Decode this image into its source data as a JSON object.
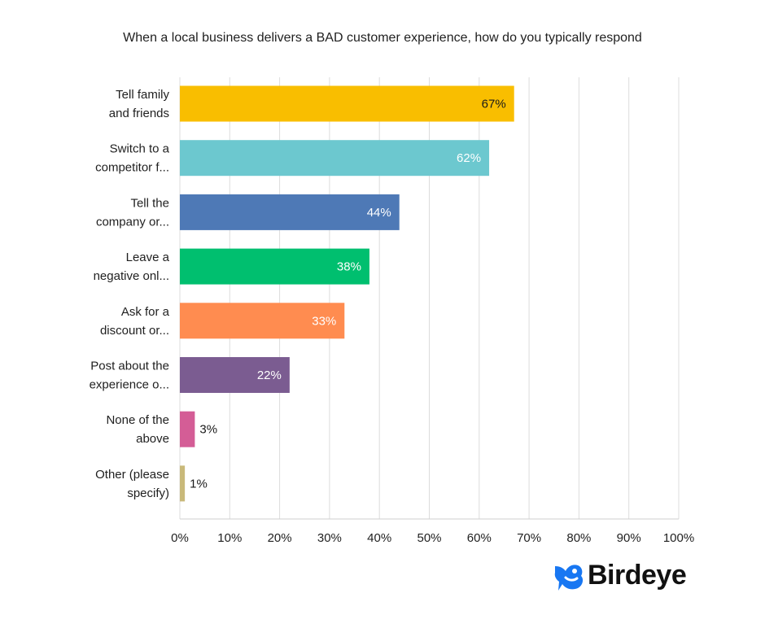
{
  "chart_data": {
    "type": "bar",
    "orientation": "horizontal",
    "title": "When a local business delivers a BAD customer experience, how do you typically respond",
    "categories": [
      [
        "Tell family",
        "and friends"
      ],
      [
        "Switch to a",
        "competitor f..."
      ],
      [
        "Tell the",
        "company or..."
      ],
      [
        "Leave a",
        "negative onl..."
      ],
      [
        "Ask for a",
        "discount or..."
      ],
      [
        "Post about the",
        "experience o..."
      ],
      [
        "None of the",
        "above"
      ],
      [
        "Other (please",
        "specify)"
      ]
    ],
    "values": [
      67,
      62,
      44,
      38,
      33,
      22,
      3,
      1
    ],
    "value_labels": [
      "67%",
      "62%",
      "44%",
      "38%",
      "33%",
      "22%",
      "3%",
      "1%"
    ],
    "colors": [
      "#F9BE00",
      "#6CC8CF",
      "#4E79B6",
      "#00BF6F",
      "#FF8C50",
      "#7B5C91",
      "#D45D96",
      "#C9B97A"
    ],
    "xlim": [
      0,
      100
    ],
    "xticks": [
      "0%",
      "10%",
      "20%",
      "30%",
      "40%",
      "50%",
      "60%",
      "70%",
      "80%",
      "90%",
      "100%"
    ],
    "grid": "vertical"
  },
  "brand": {
    "name": "Birdeye",
    "color": "#1877F2"
  }
}
